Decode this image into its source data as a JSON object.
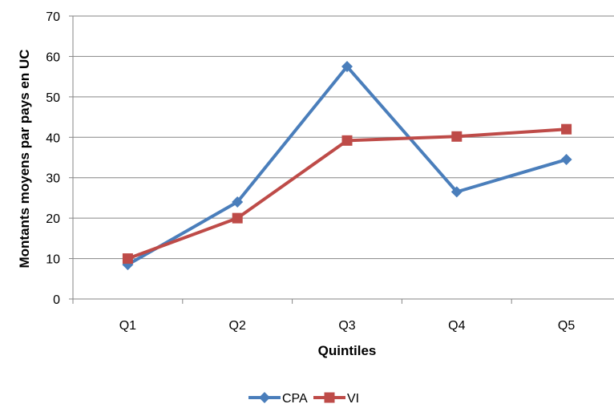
{
  "chart_data": {
    "type": "line",
    "title": "",
    "xlabel": "Quintiles",
    "ylabel": "Montants moyens par pays en UC",
    "categories": [
      "Q1",
      "Q2",
      "Q3",
      "Q4",
      "Q5"
    ],
    "ylim": [
      0,
      70
    ],
    "yticks": [
      0,
      10,
      20,
      30,
      40,
      50,
      60,
      70
    ],
    "grid": true,
    "legend_position": "bottom",
    "series": [
      {
        "name": "CPA",
        "values": [
          8.5,
          24,
          57.5,
          26.5,
          34.5
        ],
        "color": "#4a7ebb",
        "marker": "diamond"
      },
      {
        "name": "VI",
        "values": [
          10,
          20,
          39.2,
          40.2,
          42
        ],
        "color": "#be4b48",
        "marker": "square"
      }
    ]
  }
}
